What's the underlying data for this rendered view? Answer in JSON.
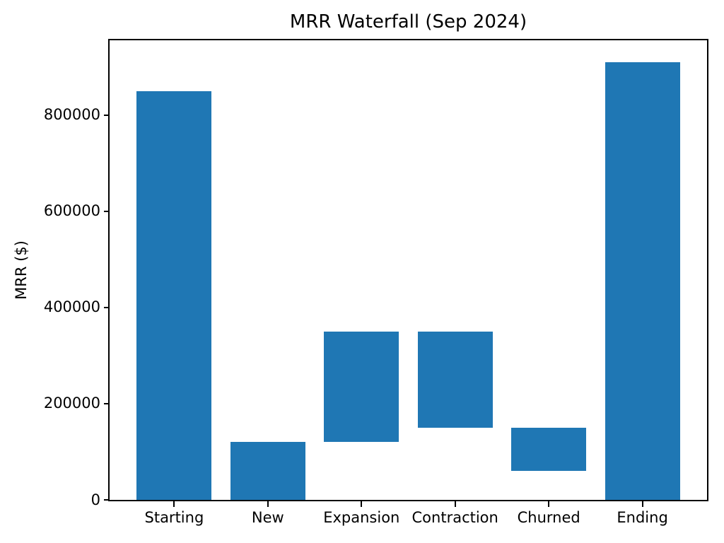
{
  "figure": {
    "background_color": "#ffffff",
    "spine_color": "#000000",
    "text_color": "#000000"
  },
  "chart_data": {
    "type": "bar",
    "subtype": "waterfall",
    "title": "MRR Waterfall (Sep 2024)",
    "xlabel": "",
    "ylabel": "MRR ($)",
    "categories": [
      "Starting",
      "New",
      "Expansion",
      "Contraction",
      "Churned",
      "Ending"
    ],
    "bars": [
      {
        "label": "Starting",
        "start": 0,
        "end": 850000,
        "delta": 850000
      },
      {
        "label": "New",
        "start": 0,
        "end": 120000,
        "delta": 120000
      },
      {
        "label": "Expansion",
        "start": 120000,
        "end": 350000,
        "delta": 230000
      },
      {
        "label": "Contraction",
        "start": 350000,
        "end": 150000,
        "delta": -200000
      },
      {
        "label": "Churned",
        "start": 150000,
        "end": 60000,
        "delta": -90000
      },
      {
        "label": "Ending",
        "start": 0,
        "end": 910000,
        "delta": 910000
      }
    ],
    "yticks": [
      0,
      200000,
      400000,
      600000,
      800000
    ],
    "ytick_labels": [
      "0",
      "200000",
      "400000",
      "600000",
      "800000"
    ],
    "ylim": [
      0,
      955500
    ],
    "xlim": [
      -0.69,
      5.69
    ],
    "bar_width": 0.8,
    "bar_color": "#1f77b4",
    "grid": false,
    "legend_position": "none"
  }
}
